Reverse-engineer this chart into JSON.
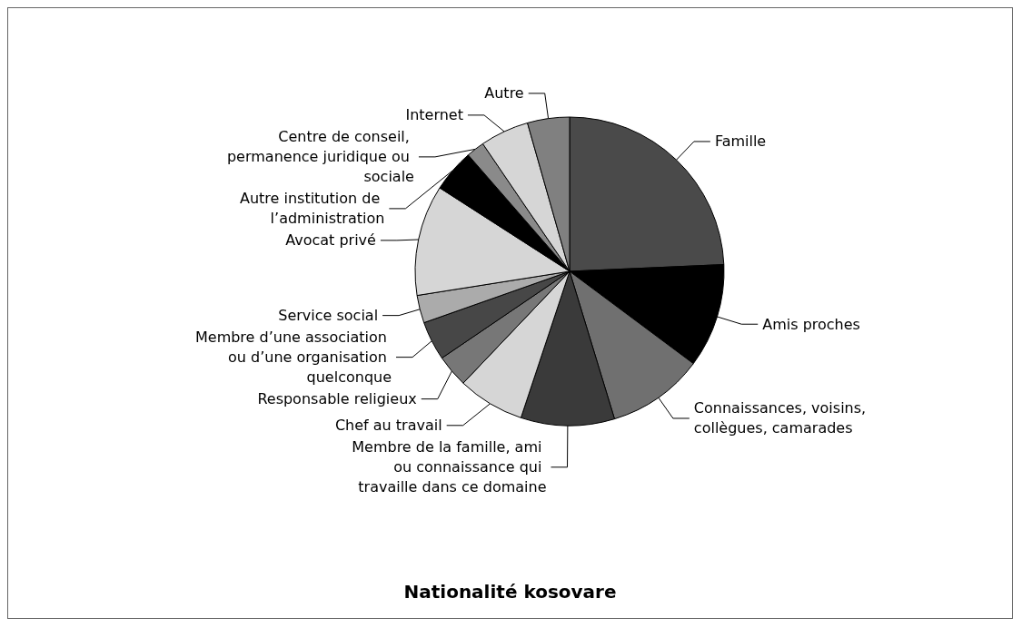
{
  "chart_data": {
    "type": "pie",
    "title": "Nationalité kosovare",
    "categories": [
      "Famille",
      "Amis proches",
      "Connaissances, voisins, collègues, camarades",
      "Membre de la famille, ami ou connaissance qui travaille dans ce domaine",
      "Chef au travail",
      "Responsable religieux",
      "Membre d’une association ou d’une organisation quelconque",
      "Service social",
      "Avocat privé",
      "Autre institution de l’administration",
      "Centre de conseil, permanence juridique ou sociale",
      "Internet",
      "Autre"
    ],
    "values": [
      24.3,
      10.9,
      10.1,
      9.8,
      7.0,
      3.4,
      4.1,
      2.9,
      11.6,
      4.5,
      1.9,
      5.1,
      4.4
    ],
    "colors": [
      "#4a4a4a",
      "#000000",
      "#707070",
      "#3a3a3a",
      "#d6d6d6",
      "#777777",
      "#474747",
      "#ababab",
      "#d6d6d6",
      "#000000",
      "#8a8a8a",
      "#d6d6d6",
      "#808080"
    ],
    "legend": false
  }
}
